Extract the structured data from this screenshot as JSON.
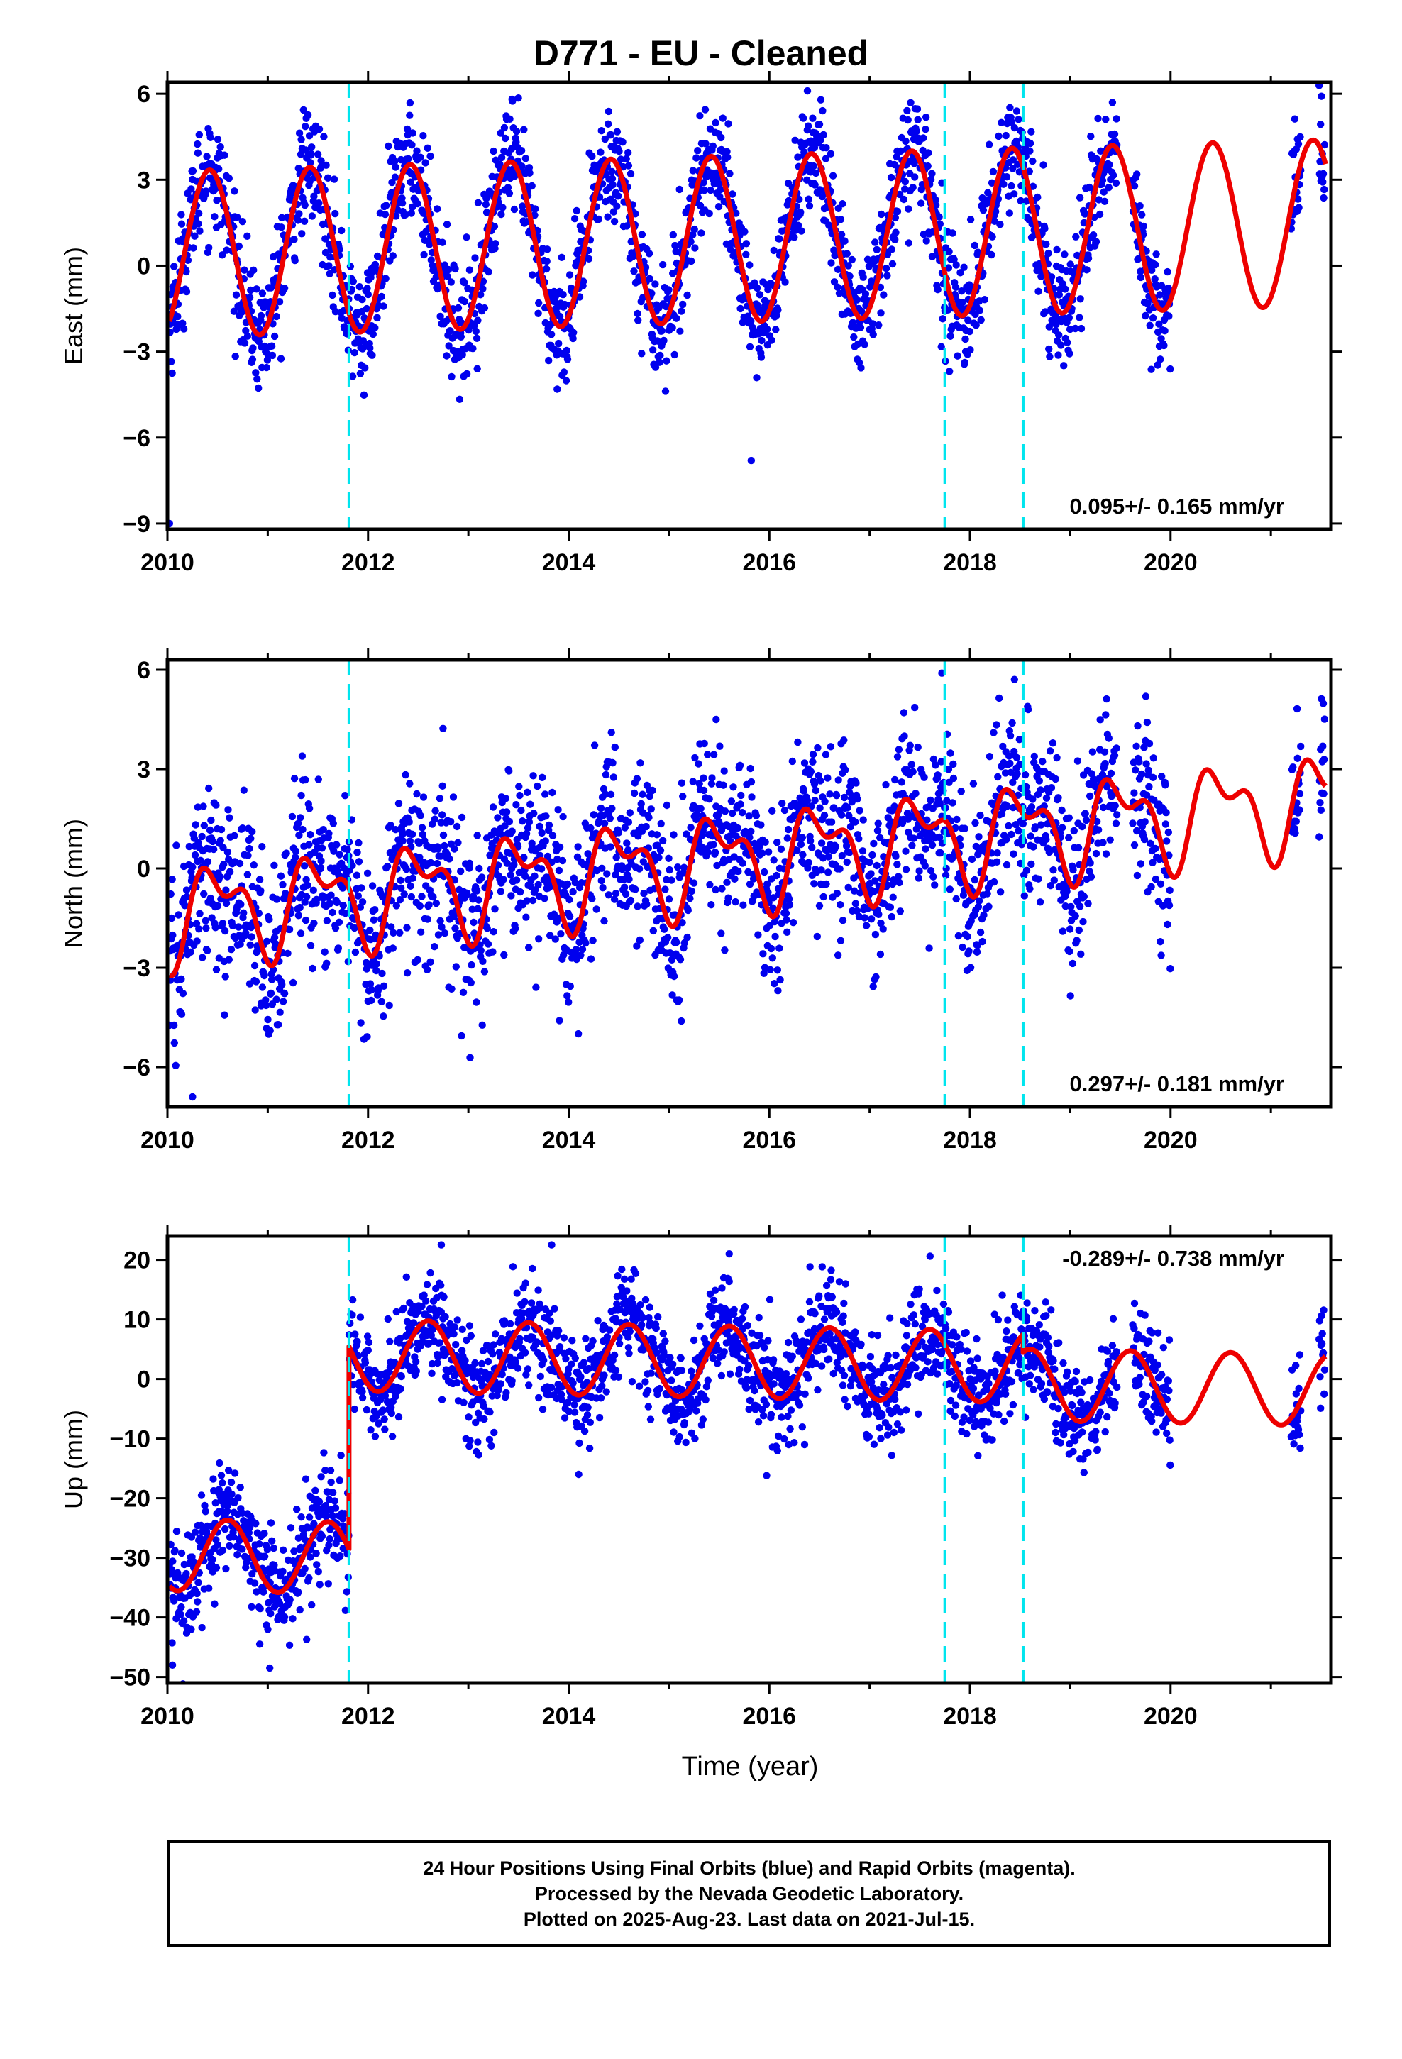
{
  "title": "D771  - EU - Cleaned",
  "xlabel": "Time (year)",
  "footer": {
    "line1": "24 Hour Positions Using Final Orbits (blue) and Rapid Orbits (magenta).",
    "line2": "Processed by the Nevada Geodetic Laboratory.",
    "line3": "Plotted on 2025-Aug-23. Last data on 2021-Jul-15."
  },
  "colors": {
    "points": "#0000ee",
    "model": "#ee0000",
    "events": "#00e5ee",
    "frame": "#000000"
  },
  "chart_data": [
    {
      "type": "scatter",
      "ylabel": "East (mm)",
      "rate_label": "0.095+/- 0.165 mm/yr",
      "rate_position": "bottom-right",
      "xlim": [
        2010.0,
        2021.6
      ],
      "ylim": [
        -9.2,
        6.4
      ],
      "xticks": [
        "2010",
        "2012",
        "2014",
        "2016",
        "2018",
        "2020"
      ],
      "yticks": [
        "6",
        "3",
        "0",
        "−3",
        "−6",
        "−9"
      ],
      "ytick_values": [
        6,
        3,
        0,
        -3,
        -6,
        -9
      ],
      "event_lines": [
        2011.81,
        2017.75,
        2018.53
      ],
      "data_gap": [
        2020.0,
        2021.2
      ],
      "model": {
        "offset": 0.4,
        "trend": 0.095,
        "annual_amp": 2.9,
        "annual_phase_yr": 0.42,
        "semiannual_amp": 0.0,
        "steps": []
      },
      "scatter_noise_mm": 1.0,
      "outliers": [
        [
          2010.02,
          -9.0
        ],
        [
          2015.82,
          -6.8
        ],
        [
          2016.38,
          6.1
        ]
      ]
    },
    {
      "type": "scatter",
      "ylabel": "North (mm)",
      "rate_label": "0.297+/- 0.181 mm/yr",
      "rate_position": "bottom-right",
      "xlim": [
        2010.0,
        2021.6
      ],
      "ylim": [
        -7.2,
        6.3
      ],
      "xticks": [
        "2010",
        "2012",
        "2014",
        "2016",
        "2018",
        "2020"
      ],
      "yticks": [
        "6",
        "3",
        "0",
        "−3",
        "−6"
      ],
      "ytick_values": [
        6,
        3,
        0,
        -3,
        -6
      ],
      "event_lines": [
        2011.81,
        2017.75,
        2018.53
      ],
      "data_gap": [
        2020.0,
        2021.2
      ],
      "model": {
        "offset": -1.4,
        "trend": 0.297,
        "annual_amp": 1.2,
        "annual_phase_yr": 0.5,
        "semiannual_amp": 0.7,
        "semiannual_phase_yr": 0.18,
        "steps": []
      },
      "scatter_noise_mm": 1.3,
      "outliers": [
        [
          2010.25,
          -6.9
        ],
        [
          2017.72,
          5.9
        ],
        [
          2018.58,
          4.8
        ],
        [
          2015.47,
          4.5
        ]
      ]
    },
    {
      "type": "scatter",
      "ylabel": "Up (mm)",
      "rate_label": "-0.289+/- 0.738 mm/yr",
      "rate_position": "top-right",
      "xlim": [
        2010.0,
        2021.6
      ],
      "ylim": [
        -51,
        24
      ],
      "xticks": [
        "2010",
        "2012",
        "2014",
        "2016",
        "2018",
        "2020"
      ],
      "yticks": [
        "20",
        "10",
        "0",
        "−10",
        "−20",
        "−30",
        "−40",
        "−50"
      ],
      "ytick_values": [
        20,
        10,
        0,
        -10,
        -20,
        -30,
        -40,
        -50
      ],
      "event_lines": [
        2011.81,
        2017.75,
        2018.53
      ],
      "data_gap": [
        2020.0,
        2021.2
      ],
      "model": {
        "offset": -29.5,
        "trend": -0.289,
        "annual_amp": 6.0,
        "annual_phase_yr": 0.6,
        "semiannual_amp": 0.0,
        "steps": [
          [
            2011.81,
            34.0
          ],
          [
            2018.53,
            -3.0
          ]
        ]
      },
      "scatter_noise_mm": 4.5,
      "outliers": [
        [
          2010.05,
          -48
        ],
        [
          2011.02,
          -48.5
        ],
        [
          2012.73,
          22.5
        ],
        [
          2013.83,
          22.5
        ],
        [
          2015.6,
          21
        ],
        [
          2014.1,
          -16
        ]
      ]
    }
  ]
}
